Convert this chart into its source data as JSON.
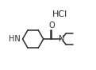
{
  "bg_color": "#ffffff",
  "line_color": "#2b2b2b",
  "text_color": "#2b2b2b",
  "hcl_label": "HCl",
  "hn_label": "HN",
  "o_label": "O",
  "n_label": "N",
  "figsize": [
    1.21,
    0.88
  ],
  "dpi": 100,
  "bond_lw": 1.1,
  "font_size": 7.0,
  "hcl_font_size": 8.0
}
